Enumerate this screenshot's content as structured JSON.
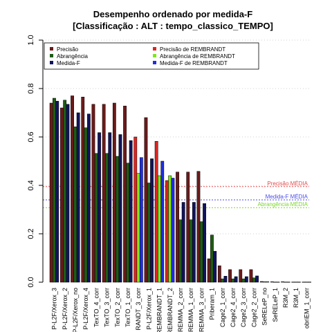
{
  "chart_data": {
    "type": "bar",
    "title": "Desempenho ordenado por medida-F",
    "subtitle": "[Classificação : ALT : tempo_classico_TEMPO]",
    "ylim": [
      0,
      1
    ],
    "yticks": [
      "0.0",
      "0.2",
      "0.4",
      "0.6",
      "0.8",
      "1.0"
    ],
    "ytick_values": [
      0,
      0.2,
      0.4,
      0.6,
      0.8,
      1.0
    ],
    "categories": [
      "P-L2F/Xerox_3",
      "P-L2F/Xerox_2",
      "P-L2F/Xerox_no",
      "P-L2F/Xerox_4",
      "TexTO_4_corr",
      "TexTO_3_corr",
      "TexTO_2_corr",
      "TexTO_1_corr",
      "RANDT_3_corr",
      "P-L2F/Xerox_1",
      "REMBRANDT_1",
      "REMBRANDT_2",
      "REMMA_2_corr",
      "REMMA_1_corr",
      "REMMA_3_corr",
      "Priberam_1",
      "Cage2_1_corr",
      "Cage2_4_corr",
      "Cage2_3_corr",
      "Cage2_2_corr",
      "SeRELeP_no",
      "SeRELeP_1",
      "R3M_2",
      "R3M_1",
      "obriEM_1_corr"
    ],
    "series": [
      {
        "name": "Precisão",
        "color": "#6b1a1a",
        "values": [
          0.74,
          0.72,
          0.77,
          0.765,
          0.735,
          0.735,
          0.74,
          0.728,
          0.6,
          0.68,
          0.582,
          0.42,
          0.455,
          0.455,
          0.458,
          0.097,
          0.068,
          0.052,
          0.052,
          0.052,
          0.003,
          0.002,
          0.002,
          0.001,
          0.001
        ]
      },
      {
        "name": "Abrangência",
        "color": "#1f5c14",
        "values": [
          0.76,
          0.752,
          0.642,
          0.638,
          0.532,
          0.532,
          0.52,
          0.492,
          0.45,
          0.41,
          0.44,
          0.44,
          0.258,
          0.258,
          0.25,
          0.195,
          0.014,
          0.014,
          0.014,
          0.018,
          0.002,
          0.001,
          0.001,
          0.001,
          0.001
        ]
      },
      {
        "name": "Medida-F",
        "color": "#12145c",
        "values": [
          0.748,
          0.735,
          0.7,
          0.695,
          0.618,
          0.618,
          0.61,
          0.585,
          0.515,
          0.51,
          0.5,
          0.43,
          0.33,
          0.33,
          0.325,
          0.128,
          0.025,
          0.023,
          0.023,
          0.026,
          0.002,
          0.001,
          0.001,
          0.001,
          0.001
        ]
      }
    ],
    "highlight": {
      "categories": [
        "RANDT_3_corr",
        "REMBRANDT_1",
        "REMBRANDT_2"
      ],
      "series": [
        {
          "name": "Precisão de REMBRANDT",
          "color": "#e0241f"
        },
        {
          "name": "Abrangência de REMBRANDT",
          "color": "#7fe61a"
        },
        {
          "name": "Medida-F de REMBRANDT",
          "color": "#1f2ee0"
        }
      ]
    },
    "reference_lines": [
      {
        "label": "Precisão MÉDIA",
        "value": 0.395,
        "color": "#e84a4a"
      },
      {
        "label": "Medida-F MÉDIA",
        "value": 0.34,
        "color": "#4a4ae8"
      },
      {
        "label": "Abrangência MÉDIA",
        "value": 0.308,
        "color": "#7ad62a"
      }
    ],
    "grid": true,
    "legend_position": "top"
  }
}
